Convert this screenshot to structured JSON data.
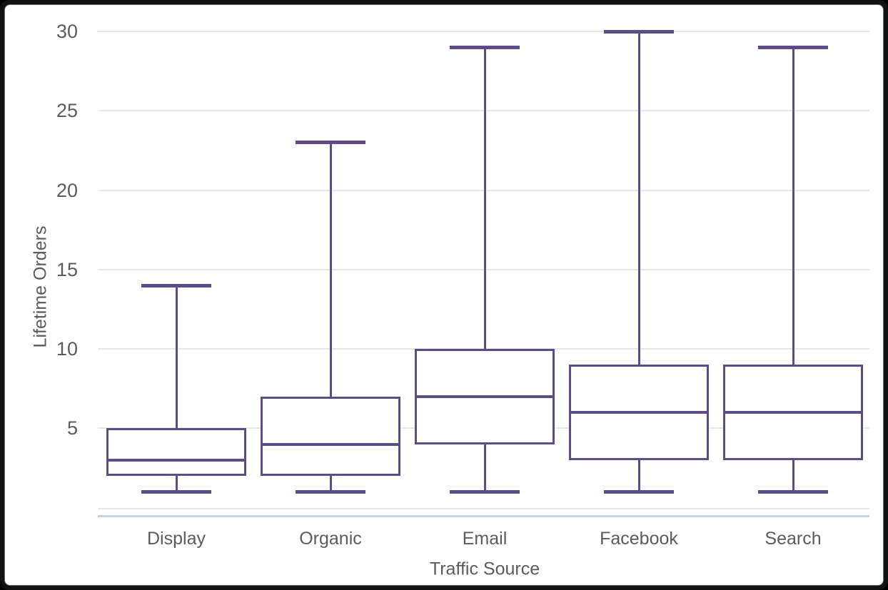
{
  "chart_data": {
    "type": "boxplot",
    "title": "",
    "xlabel": "Traffic Source",
    "ylabel": "Lifetime Orders",
    "categories": [
      "Display",
      "Organic",
      "Email",
      "Facebook",
      "Search"
    ],
    "series": [
      {
        "name": "Display",
        "min": 1,
        "q1": 2,
        "median": 3,
        "q3": 5,
        "max": 14
      },
      {
        "name": "Organic",
        "min": 1,
        "q1": 2,
        "median": 4,
        "q3": 7,
        "max": 23
      },
      {
        "name": "Email",
        "min": 1,
        "q1": 4,
        "median": 7,
        "q3": 10,
        "max": 29
      },
      {
        "name": "Facebook",
        "min": 1,
        "q1": 3,
        "median": 6,
        "q3": 9,
        "max": 30
      },
      {
        "name": "Search",
        "min": 1,
        "q1": 3,
        "median": 6,
        "q3": 9,
        "max": 29
      }
    ],
    "yticks": [
      5,
      10,
      15,
      20,
      25,
      30
    ],
    "ylim": [
      0,
      30
    ],
    "grid": "horizontal",
    "legend_position": "none",
    "colors": {
      "box": "#5e4c88",
      "gridline": "#e6e6e6",
      "axis_line": "#c7d2ea",
      "text": "#5a5b5d",
      "background": "#ffffff",
      "frame": "#101214"
    }
  }
}
